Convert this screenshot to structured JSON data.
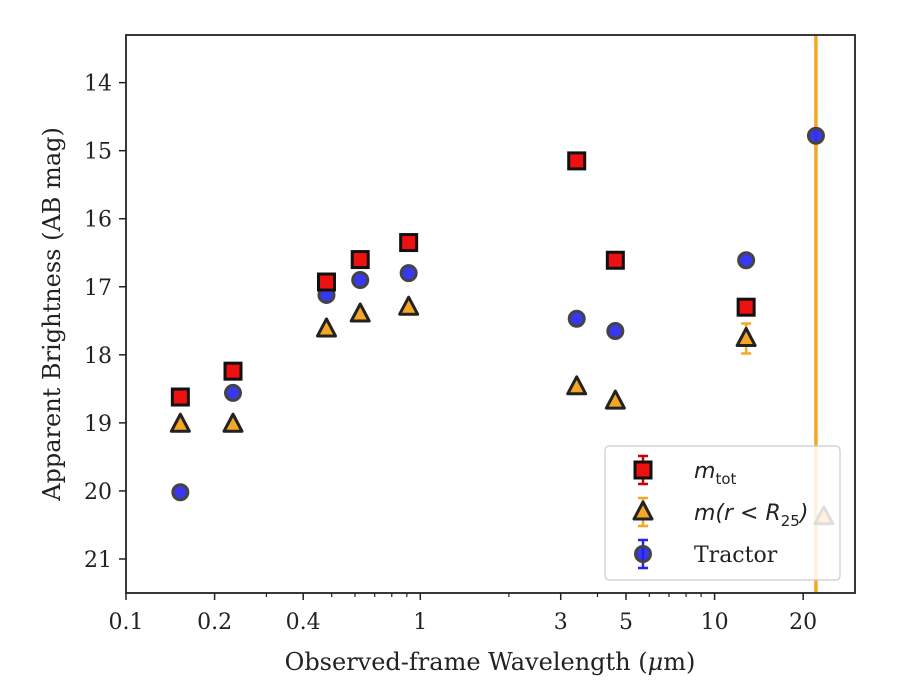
{
  "chart_data": {
    "type": "scatter",
    "xlabel_prefix": "Observed-frame Wavelength (",
    "xlabel_unit_mu": "μ",
    "xlabel_suffix": "m)",
    "ylabel": "Apparent Brightness (AB mag)",
    "xscale": "log",
    "xlim": [
      0.1,
      30
    ],
    "ylim": [
      21.5,
      13.3
    ],
    "y_inverted": true,
    "xticks": [
      {
        "value": 0.1,
        "label": "0.1"
      },
      {
        "value": 0.2,
        "label": "0.2"
      },
      {
        "value": 0.4,
        "label": "0.4"
      },
      {
        "value": 1,
        "label": "1"
      },
      {
        "value": 3,
        "label": "3"
      },
      {
        "value": 5,
        "label": "5"
      },
      {
        "value": 10,
        "label": "10"
      },
      {
        "value": 20,
        "label": "20"
      }
    ],
    "yticks": [
      {
        "value": 14,
        "label": "14"
      },
      {
        "value": 15,
        "label": "15"
      },
      {
        "value": 16,
        "label": "16"
      },
      {
        "value": 17,
        "label": "17"
      },
      {
        "value": 18,
        "label": "18"
      },
      {
        "value": 19,
        "label": "19"
      },
      {
        "value": 20,
        "label": "20"
      },
      {
        "value": 21,
        "label": "21"
      }
    ],
    "vline": {
      "x": 22.1,
      "color": "#f5a623"
    },
    "legend_position": "lower-right",
    "series": [
      {
        "key": "mtot",
        "legend_main": "m",
        "legend_sub": "tot",
        "legend_tail": "",
        "marker": "square",
        "color": "#ee1111",
        "errcolor": "#cc0000",
        "points": [
          {
            "x": 0.153,
            "y": 18.62,
            "err": 0.05
          },
          {
            "x": 0.231,
            "y": 18.24,
            "err": 0.05
          },
          {
            "x": 0.48,
            "y": 16.93,
            "err": 0.03
          },
          {
            "x": 0.625,
            "y": 16.6,
            "err": 0.03
          },
          {
            "x": 0.913,
            "y": 16.35,
            "err": 0.03
          },
          {
            "x": 3.4,
            "y": 15.15,
            "err": 0.03
          },
          {
            "x": 4.6,
            "y": 16.61,
            "err": 0.03
          },
          {
            "x": 12.8,
            "y": 17.3,
            "err": 0.04
          }
        ]
      },
      {
        "key": "mr25",
        "legend_main": "m(r < R",
        "legend_sub": "25",
        "legend_tail": ")",
        "marker": "triangle",
        "color": "#f5a623",
        "errcolor": "#f5a623",
        "points": [
          {
            "x": 0.153,
            "y": 19.02,
            "err": 0.05
          },
          {
            "x": 0.231,
            "y": 19.02,
            "err": 0.05
          },
          {
            "x": 0.48,
            "y": 17.62,
            "err": 0.03
          },
          {
            "x": 0.625,
            "y": 17.4,
            "err": 0.03
          },
          {
            "x": 0.913,
            "y": 17.3,
            "err": 0.03
          },
          {
            "x": 3.4,
            "y": 18.47,
            "err": 0.05
          },
          {
            "x": 4.6,
            "y": 18.68,
            "err": 0.05
          },
          {
            "x": 12.8,
            "y": 17.76,
            "err": 0.22
          },
          {
            "x": 23.5,
            "y": 20.38,
            "err": 0.05
          }
        ]
      },
      {
        "key": "tractor",
        "legend_main": "Tractor",
        "legend_sub": "",
        "legend_tail": "",
        "marker": "circle",
        "color": "#2222ee",
        "errcolor": "#2222ee",
        "points": [
          {
            "x": 0.153,
            "y": 20.02,
            "err": 0.07
          },
          {
            "x": 0.231,
            "y": 18.56,
            "err": 0.05
          },
          {
            "x": 0.48,
            "y": 17.12,
            "err": 0.04
          },
          {
            "x": 0.625,
            "y": 16.9,
            "err": 0.03
          },
          {
            "x": 0.913,
            "y": 16.8,
            "err": 0.03
          },
          {
            "x": 3.4,
            "y": 17.47,
            "err": 0.04
          },
          {
            "x": 4.6,
            "y": 17.65,
            "err": 0.04
          },
          {
            "x": 12.8,
            "y": 16.61,
            "err": 0.04
          },
          {
            "x": 22.1,
            "y": 14.78,
            "err": 0.03
          }
        ]
      }
    ]
  }
}
